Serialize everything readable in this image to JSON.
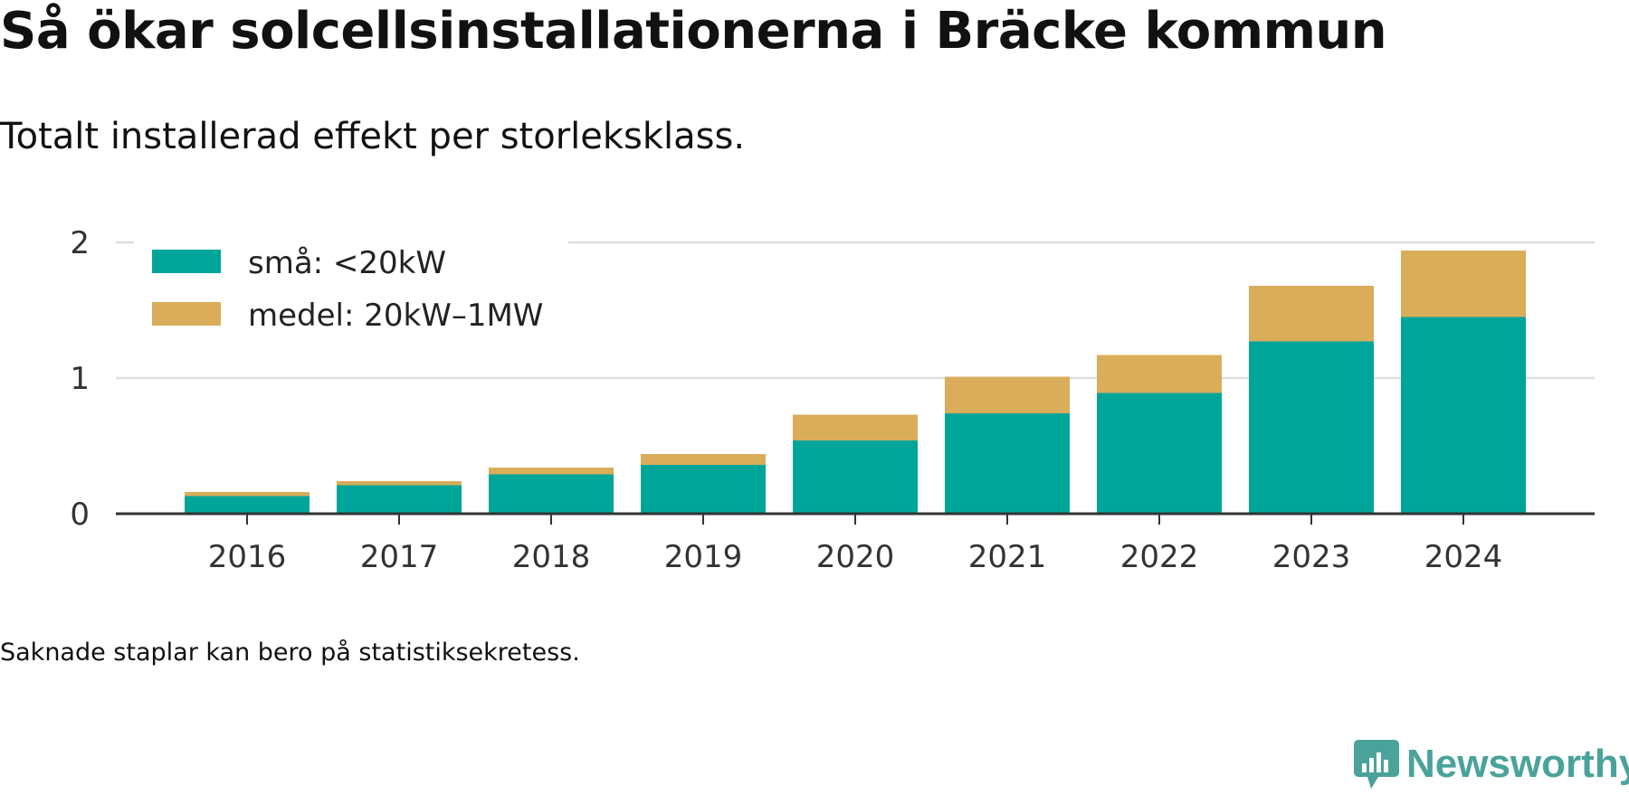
{
  "title": "Så ökar solcellsinstallationerna i Bräcke kommun",
  "subtitle": "Totalt installerad effekt per storleksklass.",
  "footnote": "Saknade staplar kan bero på statistiksekretess.",
  "brand": {
    "name": "Newsworthy",
    "icon": "newsworthy-logo-icon",
    "color": "#4aa39a"
  },
  "chart_data": {
    "type": "bar",
    "stacked": true,
    "categories": [
      "2016",
      "2017",
      "2018",
      "2019",
      "2020",
      "2021",
      "2022",
      "2023",
      "2024"
    ],
    "series": [
      {
        "name": "små: <20kW",
        "color": "#00a59a",
        "values": [
          0.13,
          0.21,
          0.29,
          0.36,
          0.54,
          0.74,
          0.89,
          1.27,
          1.45
        ]
      },
      {
        "name": "medel: 20kW–1MW",
        "color": "#d9ad5a",
        "values": [
          0.03,
          0.03,
          0.05,
          0.08,
          0.19,
          0.27,
          0.28,
          0.41,
          0.49
        ]
      }
    ],
    "yticks": [
      "0",
      "1",
      "2"
    ],
    "ylim": [
      0,
      2
    ],
    "xlabel": "",
    "ylabel": "",
    "grid": true,
    "legend": "top-left"
  }
}
